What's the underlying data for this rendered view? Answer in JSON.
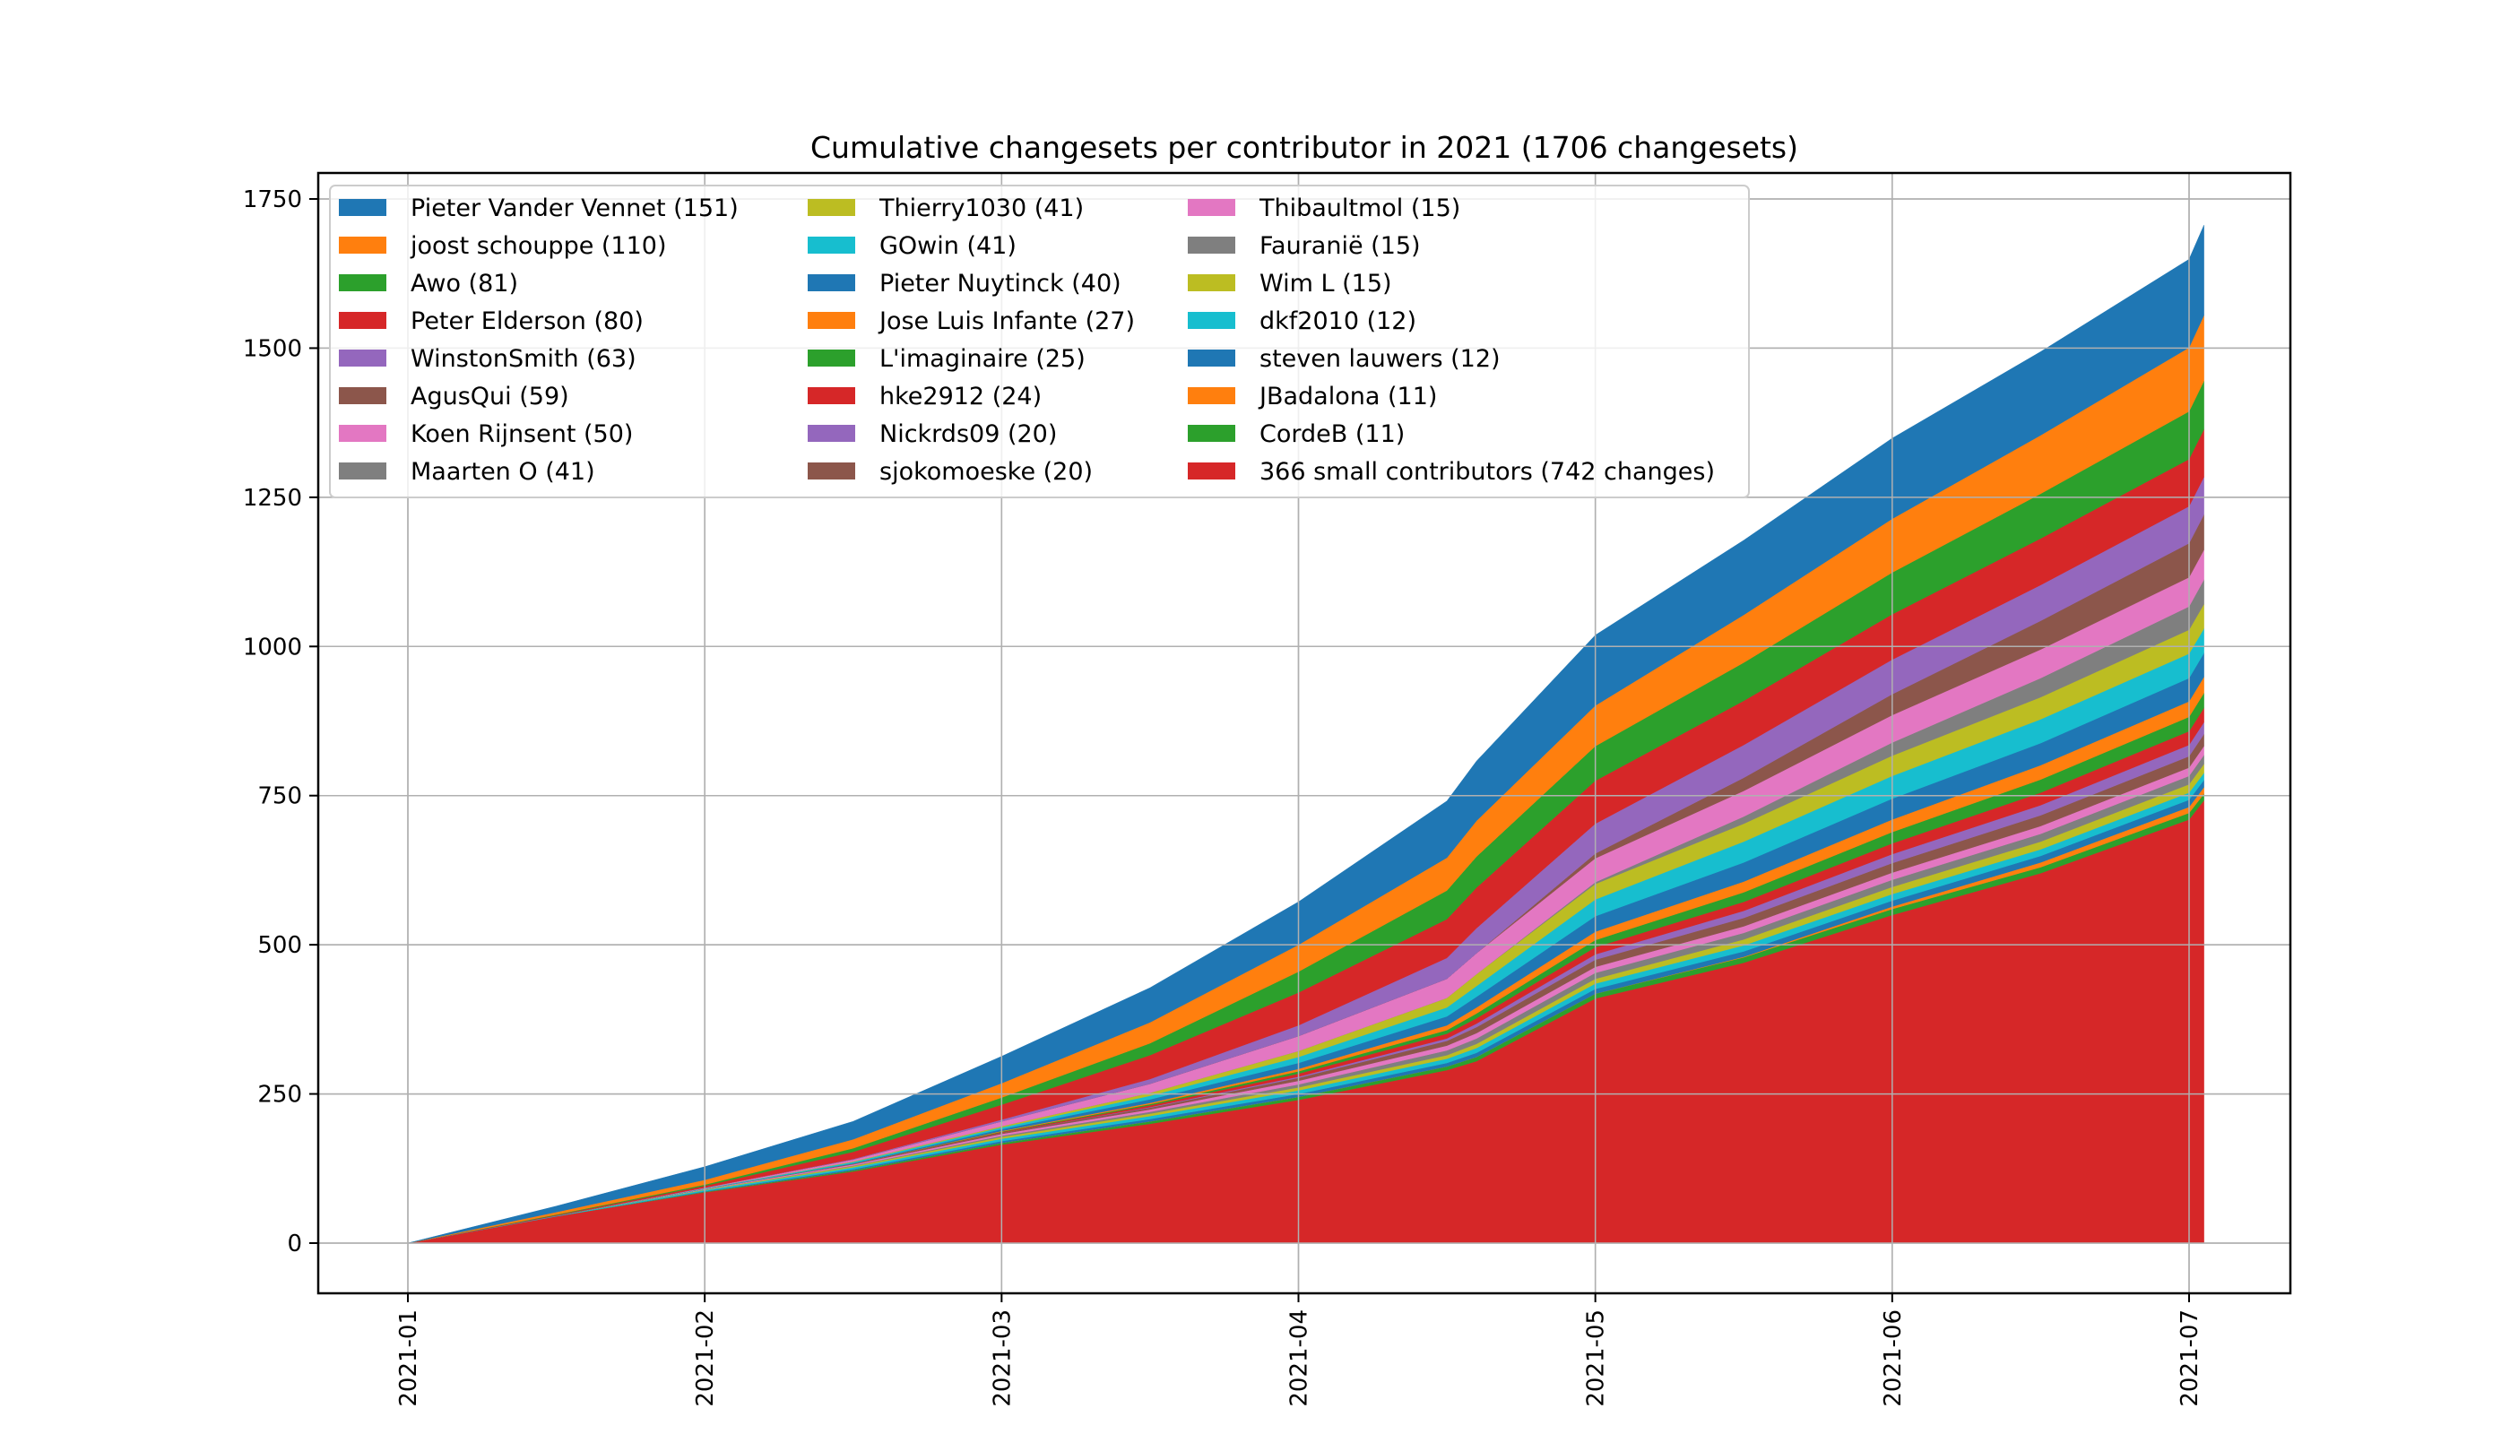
{
  "chart_data": {
    "type": "area",
    "stacked": true,
    "cumulative": true,
    "title": "Cumulative changesets per contributor in 2021 (1706 changesets)",
    "xlabel": "",
    "ylabel": "",
    "ylim": [
      -85,
      1840
    ],
    "yticks": [
      0,
      250,
      500,
      750,
      1000,
      1250,
      1500,
      1750
    ],
    "ytick_labels": [
      "0",
      "250",
      "500",
      "750",
      "1000",
      "1250",
      "1500",
      "1750"
    ],
    "xtick_labels": [
      "2021-01",
      "2021-02",
      "2021-03",
      "2021-04",
      "2021-05",
      "2021-06",
      "2021-07"
    ],
    "xtick_rotation": "vertical",
    "grid": true,
    "legend_position": "top-left",
    "legend_columns": 3,
    "x_months": [
      0,
      0.5,
      1,
      1.5,
      2,
      2.5,
      3,
      3.5,
      3.6,
      4,
      4.5,
      5,
      5.5,
      6,
      6.05
    ],
    "total_changesets": 1706,
    "series": [
      {
        "name": "Pieter Vander Vennet (151)",
        "final": 151,
        "color": "#1f77b4",
        "values": [
          0,
          10,
          22,
          30,
          45,
          58,
          72,
          95,
          100,
          118,
          125,
          135,
          140,
          148,
          151
        ]
      },
      {
        "name": "joost schouppe (110)",
        "final": 110,
        "color": "#ff7f0e",
        "values": [
          0,
          4,
          8,
          15,
          24,
          35,
          45,
          55,
          60,
          68,
          80,
          90,
          98,
          107,
          110
        ]
      },
      {
        "name": "Awo (81)",
        "final": 81,
        "color": "#2ca02c",
        "values": [
          0,
          1,
          2,
          6,
          12,
          20,
          35,
          48,
          52,
          58,
          64,
          70,
          75,
          80,
          81
        ]
      },
      {
        "name": "Peter Elderson (80)",
        "final": 80,
        "color": "#d62728",
        "values": [
          0,
          1,
          3,
          12,
          25,
          40,
          55,
          65,
          68,
          72,
          74,
          76,
          78,
          79,
          80
        ]
      },
      {
        "name": "WinstonSmith (63)",
        "final": 63,
        "color": "#9467bd",
        "values": [
          0,
          0,
          0,
          1,
          3,
          8,
          18,
          35,
          42,
          50,
          55,
          58,
          60,
          62,
          63
        ]
      },
      {
        "name": "AgusQui (59)",
        "final": 59,
        "color": "#8c564b",
        "values": [
          0,
          0,
          0,
          0,
          0,
          0,
          0,
          0,
          0,
          8,
          22,
          35,
          48,
          57,
          59
        ]
      },
      {
        "name": "Koen Rijnsent (50)",
        "final": 50,
        "color": "#e377c2",
        "values": [
          0,
          0,
          1,
          3,
          8,
          15,
          25,
          32,
          35,
          40,
          43,
          46,
          48,
          49,
          50
        ]
      },
      {
        "name": "Maarten O (41)",
        "final": 41,
        "color": "#7f7f7f",
        "values": [
          0,
          0,
          0,
          0,
          0,
          0,
          0,
          0,
          0,
          3,
          12,
          22,
          32,
          39,
          41
        ]
      },
      {
        "name": "Thierry1030 (41)",
        "final": 41,
        "color": "#bcbd22",
        "values": [
          0,
          0,
          0,
          1,
          2,
          5,
          10,
          16,
          20,
          26,
          30,
          34,
          37,
          40,
          41
        ]
      },
      {
        "name": "GOwin (41)",
        "final": 41,
        "color": "#17becf",
        "values": [
          0,
          0,
          1,
          2,
          3,
          6,
          10,
          15,
          18,
          28,
          35,
          38,
          40,
          41,
          41
        ]
      },
      {
        "name": "Pieter Nuytinck (40)",
        "final": 40,
        "color": "#1f77b4",
        "values": [
          0,
          0,
          0,
          1,
          3,
          6,
          10,
          15,
          18,
          26,
          32,
          35,
          37,
          39,
          40
        ]
      },
      {
        "name": "Jose Luis Infante (27)",
        "final": 27,
        "color": "#ff7f0e",
        "values": [
          0,
          0,
          0,
          0,
          1,
          2,
          4,
          8,
          10,
          14,
          18,
          21,
          24,
          26,
          27
        ]
      },
      {
        "name": "L'imaginaire (25)",
        "final": 25,
        "color": "#2ca02c",
        "values": [
          0,
          0,
          0,
          0,
          1,
          2,
          4,
          6,
          8,
          12,
          16,
          19,
          22,
          24,
          25
        ]
      },
      {
        "name": "hke2912 (24)",
        "final": 24,
        "color": "#d62728",
        "values": [
          0,
          0,
          0,
          0,
          1,
          3,
          5,
          8,
          9,
          12,
          15,
          18,
          21,
          23,
          24
        ]
      },
      {
        "name": "Nickrds09 (20)",
        "final": 20,
        "color": "#9467bd",
        "values": [
          0,
          0,
          0,
          0,
          0,
          1,
          2,
          4,
          6,
          9,
          12,
          15,
          17,
          19,
          20
        ]
      },
      {
        "name": "sjokomoeske (20)",
        "final": 20,
        "color": "#8c564b",
        "values": [
          0,
          0,
          0,
          1,
          2,
          3,
          5,
          8,
          10,
          12,
          14,
          16,
          18,
          19,
          20
        ]
      },
      {
        "name": "Thibaultmol (15)",
        "final": 15,
        "color": "#e377c2",
        "values": [
          0,
          0,
          1,
          2,
          3,
          4,
          6,
          8,
          9,
          10,
          11,
          12,
          13,
          14,
          15
        ]
      },
      {
        "name": "Fauranië (15)",
        "final": 15,
        "color": "#7f7f7f",
        "values": [
          0,
          0,
          0,
          1,
          2,
          3,
          5,
          8,
          9,
          10,
          11,
          12,
          13,
          14,
          15
        ]
      },
      {
        "name": "Wim L (15)",
        "final": 15,
        "color": "#bcbd22",
        "values": [
          0,
          0,
          1,
          2,
          3,
          4,
          5,
          6,
          7,
          8,
          10,
          12,
          13,
          14,
          15
        ]
      },
      {
        "name": "dkf2010 (12)",
        "final": 12,
        "color": "#17becf",
        "values": [
          0,
          1,
          2,
          3,
          4,
          5,
          6,
          7,
          8,
          9,
          10,
          11,
          11,
          12,
          12
        ]
      },
      {
        "name": "steven lauwers (12)",
        "final": 12,
        "color": "#1f77b4",
        "values": [
          0,
          0,
          1,
          2,
          3,
          4,
          5,
          6,
          7,
          8,
          9,
          10,
          11,
          12,
          12
        ]
      },
      {
        "name": "JBadalona (11)",
        "final": 11,
        "color": "#ff7f0e",
        "values": [
          0,
          0,
          0,
          0,
          0,
          0,
          0,
          0,
          0,
          0,
          1,
          4,
          8,
          10,
          11
        ]
      },
      {
        "name": "CordeB (11)",
        "final": 11,
        "color": "#2ca02c",
        "values": [
          0,
          0,
          1,
          2,
          3,
          4,
          5,
          6,
          7,
          8,
          9,
          10,
          10,
          11,
          11
        ]
      },
      {
        "name": "366 small contributors (742 changes)",
        "final": 742,
        "color": "#d62728",
        "values": [
          0,
          45,
          85,
          120,
          165,
          200,
          240,
          290,
          305,
          410,
          470,
          550,
          620,
          710,
          742
        ]
      }
    ]
  }
}
